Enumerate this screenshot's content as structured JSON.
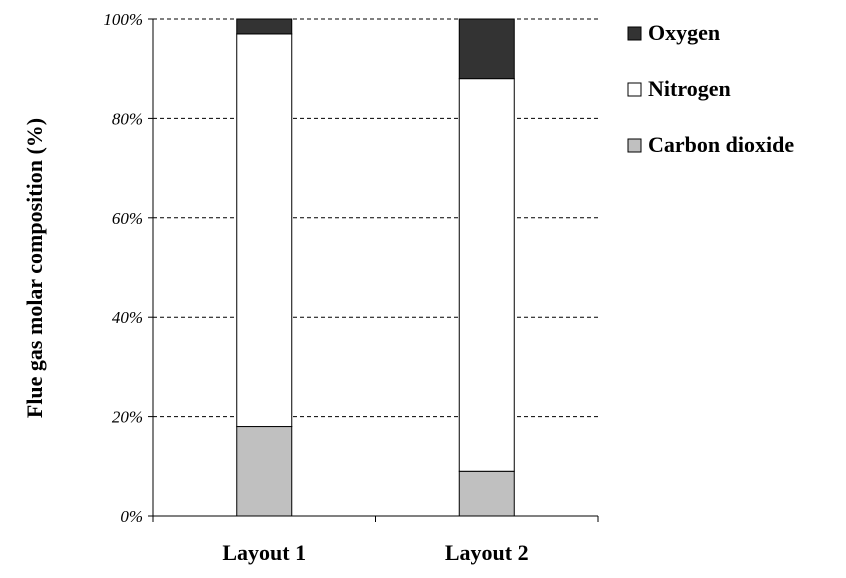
{
  "chart_data": {
    "type": "bar",
    "stacked": true,
    "categories": [
      "Layout 1",
      "Layout 2"
    ],
    "series": [
      {
        "name": "Carbon dioxide",
        "values": [
          18,
          9
        ],
        "color": "#c0c0c0"
      },
      {
        "name": "Nitrogen",
        "values": [
          79,
          79
        ],
        "color": "#ffffff"
      },
      {
        "name": "Oxygen",
        "values": [
          3,
          12
        ],
        "color": "#333333"
      }
    ],
    "legend_order": [
      "Oxygen",
      "Nitrogen",
      "Carbon dioxide"
    ],
    "ylabel": "Flue gas molar composition (%)",
    "xlabel": "",
    "ylim": [
      0,
      100
    ],
    "yticks": [
      0,
      20,
      40,
      60,
      80,
      100
    ],
    "ytick_labels": [
      "0%",
      "20%",
      "40%",
      "60%",
      "80%",
      "100%"
    ],
    "grid": "horizontal-dashed",
    "legend_position": "right"
  }
}
